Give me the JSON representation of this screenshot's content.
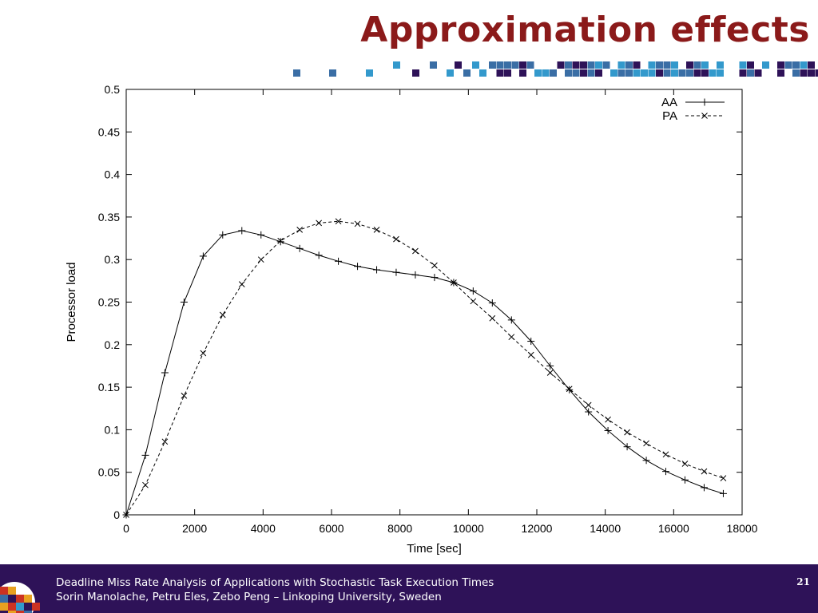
{
  "slide": {
    "title": "Approximation effects",
    "footer_line1": "Deadline Miss Rate Analysis of Applications with Stochastic Task Execution Times",
    "footer_line2": "Sorin Manolache, Petru Eles, Zebo Peng – Linkoping University, Sweden",
    "page_number": "21"
  },
  "colors": {
    "title": "#8b1a1a",
    "footer_bg": "#2e1258",
    "deco_navy": "#2e1258",
    "deco_blue": "#3a6ea5",
    "deco_cyan": "#3399cc"
  },
  "chart_data": {
    "type": "line",
    "title": "",
    "xlabel": "Time [sec]",
    "ylabel": "Processor load",
    "xlim": [
      0,
      18000
    ],
    "ylim": [
      0,
      0.5
    ],
    "xticks": [
      0,
      2000,
      4000,
      6000,
      8000,
      10000,
      12000,
      14000,
      16000,
      18000
    ],
    "yticks": [
      0,
      0.05,
      0.1,
      0.15,
      0.2,
      0.25,
      0.3,
      0.35,
      0.4,
      0.45,
      0.5
    ],
    "ytick_labels": [
      "0",
      "0.05",
      "0.1",
      "0.15",
      "0.2",
      "0.25",
      "0.3",
      "0.35",
      "0.4",
      "0.45",
      "0.5"
    ],
    "grid": false,
    "legend_position": "top-right",
    "series": [
      {
        "name": "AA",
        "style": "solid",
        "marker": "plus",
        "x": [
          0,
          560,
          1130,
          1690,
          2250,
          2820,
          3380,
          3940,
          4510,
          5070,
          5630,
          6200,
          6760,
          7320,
          7890,
          8450,
          9010,
          9570,
          10140,
          10700,
          11260,
          11830,
          12390,
          12950,
          13510,
          14080,
          14640,
          15200,
          15770,
          16330,
          16890,
          17450
        ],
        "y": [
          0,
          0.07,
          0.167,
          0.25,
          0.304,
          0.329,
          0.334,
          0.329,
          0.321,
          0.313,
          0.305,
          0.298,
          0.292,
          0.288,
          0.285,
          0.282,
          0.279,
          0.273,
          0.263,
          0.249,
          0.229,
          0.204,
          0.175,
          0.147,
          0.121,
          0.099,
          0.08,
          0.064,
          0.051,
          0.041,
          0.032,
          0.025
        ]
      },
      {
        "name": "PA",
        "style": "dashed",
        "marker": "cross",
        "x": [
          0,
          560,
          1130,
          1690,
          2250,
          2820,
          3380,
          3940,
          4510,
          5070,
          5630,
          6200,
          6760,
          7320,
          7890,
          8450,
          9010,
          9570,
          10140,
          10700,
          11260,
          11830,
          12390,
          12950,
          13510,
          14080,
          14640,
          15200,
          15770,
          16330,
          16890,
          17450
        ],
        "y": [
          0,
          0.035,
          0.086,
          0.14,
          0.19,
          0.235,
          0.271,
          0.3,
          0.322,
          0.335,
          0.343,
          0.345,
          0.342,
          0.335,
          0.324,
          0.31,
          0.293,
          0.273,
          0.251,
          0.231,
          0.209,
          0.188,
          0.167,
          0.148,
          0.129,
          0.112,
          0.097,
          0.084,
          0.071,
          0.06,
          0.051,
          0.043
        ]
      }
    ]
  }
}
